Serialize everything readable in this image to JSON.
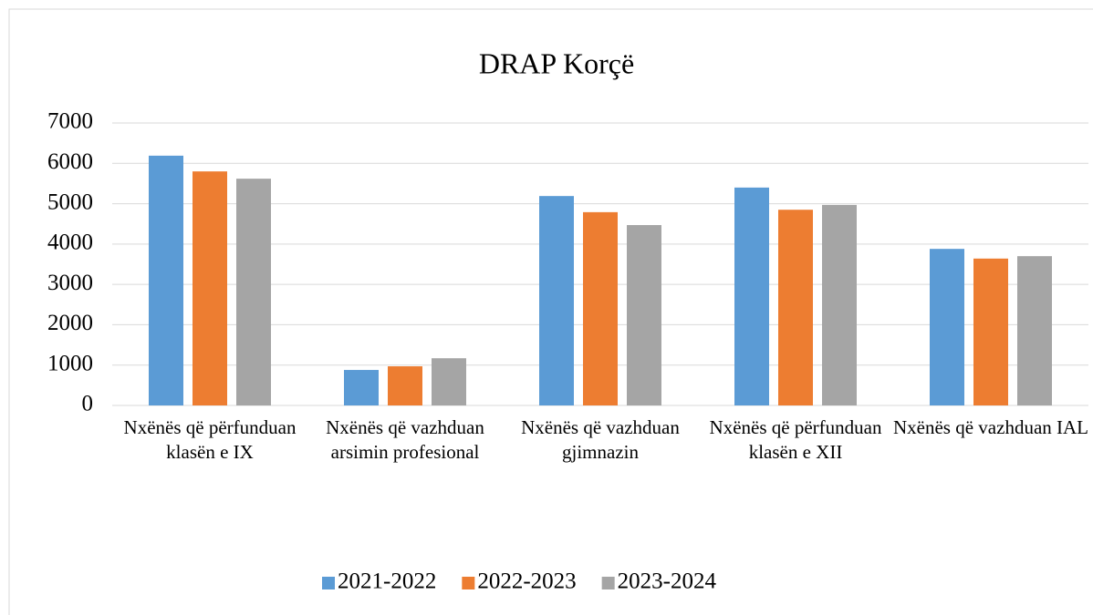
{
  "chart_data": {
    "type": "bar",
    "title": "DRAP Korçë",
    "categories": [
      "Nxënës që përfunduan klasën e IX",
      "Nxënës që vazhduan arsimin profesional",
      "Nxënës që vazhduan gjimnazin",
      "Nxënës që përfunduan klasën e XII",
      "Nxënës që vazhduan IAL"
    ],
    "series": [
      {
        "name": "2021-2022",
        "color": "#5b9bd5",
        "values": [
          6190,
          880,
          5190,
          5400,
          3880
        ]
      },
      {
        "name": "2022-2023",
        "color": "#ed7d31",
        "values": [
          5800,
          970,
          4790,
          4850,
          3640
        ]
      },
      {
        "name": "2023-2024",
        "color": "#a5a5a5",
        "values": [
          5620,
          1170,
          4470,
          4970,
          3700
        ]
      }
    ],
    "ylim": [
      0,
      7000
    ],
    "yticks": [
      0,
      1000,
      2000,
      3000,
      4000,
      5000,
      6000,
      7000
    ],
    "grid": true,
    "legend": "bottom"
  }
}
